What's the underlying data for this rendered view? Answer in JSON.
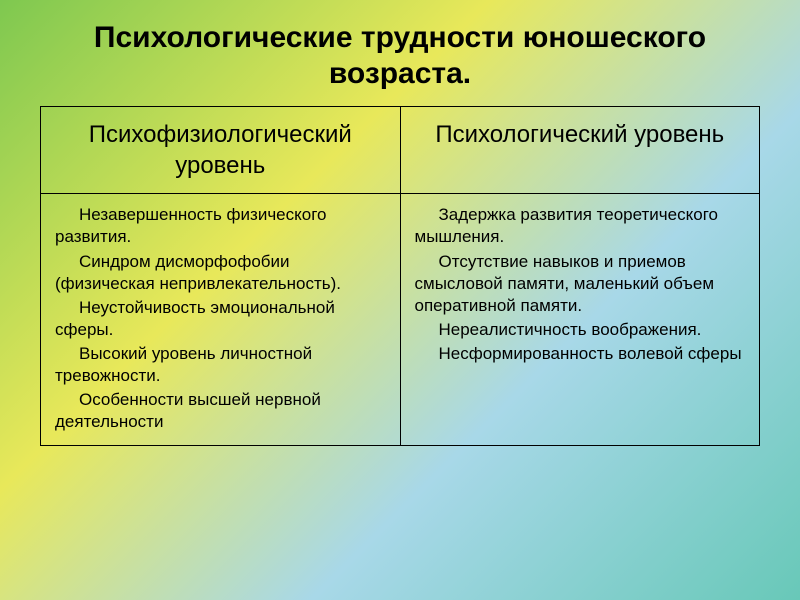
{
  "slide": {
    "title": "Психологические трудности юношеского возраста.",
    "table": {
      "headers": {
        "left": "Психофизиологический уровень",
        "right": "Психологический уровень"
      },
      "left_items": [
        "Незавершенность физического развития.",
        "Синдром дисморфофобии (физическая непривлекательность).",
        "Неустойчивость эмоциональной сферы.",
        "Высокий уровень личностной тревожности.",
        "Особенности высшей нервной деятельности"
      ],
      "right_items": [
        "Задержка развития теоретического мышления.",
        "Отсутствие навыков и приемов смысловой памяти, маленький объем оперативной памяти.",
        "Нереалистичность воображения.",
        "Несформированность волевой сферы"
      ]
    },
    "colors": {
      "text": "#000000",
      "border": "#000000",
      "bg_gradient_start": "#7ec850",
      "bg_gradient_mid1": "#e8e85a",
      "bg_gradient_mid2": "#a8d8e8",
      "bg_gradient_end": "#68c8b8"
    },
    "typography": {
      "title_fontsize": 30,
      "header_fontsize": 24,
      "body_fontsize": 17,
      "font_family": "Arial"
    }
  }
}
